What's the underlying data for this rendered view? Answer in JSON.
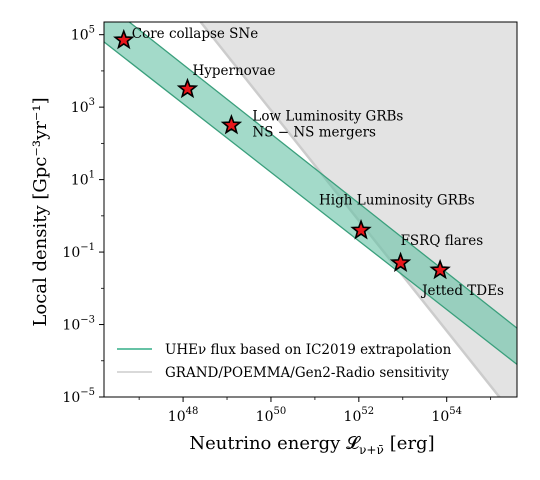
{
  "chart_data": {
    "type": "scatter",
    "title": "",
    "xlabel": "Neutrino energy 𝓛",
    "xlabel_sub": "ν+ν̄",
    "xlabel_unit": "[erg]",
    "ylabel": "Local density [Gpc⁻³yr⁻¹]",
    "xscale": "log",
    "yscale": "log",
    "xlim_log10": [
      46.2,
      55.6
    ],
    "ylim_log10": [
      -5,
      5.35
    ],
    "xticks": [
      {
        "log": 48,
        "base": "10",
        "exp": "48"
      },
      {
        "log": 50,
        "base": "10",
        "exp": "50"
      },
      {
        "log": 52,
        "base": "10",
        "exp": "52"
      },
      {
        "log": 54,
        "base": "10",
        "exp": "54"
      }
    ],
    "yticks": [
      {
        "log": 5,
        "base": "10",
        "exp": "5"
      },
      {
        "log": 3,
        "base": "10",
        "exp": "3"
      },
      {
        "log": 1,
        "base": "10",
        "exp": "1"
      },
      {
        "log": -1,
        "base": "10",
        "exp": "−1"
      },
      {
        "log": -3,
        "base": "10",
        "exp": "−3"
      },
      {
        "log": -5,
        "base": "10",
        "exp": "−5"
      }
    ],
    "points": [
      {
        "name": "Core collapse SNe",
        "x": 46.65,
        "y": 4.85
      },
      {
        "name": "Hypernovae",
        "x": 48.1,
        "y": 3.5
      },
      {
        "name": "Low Luminosity GRBs\nNS − NS mergers",
        "x": 49.1,
        "y": 2.5
      },
      {
        "name": "High Luminosity GRBs",
        "x": 52.05,
        "y": -0.4
      },
      {
        "name": "FSRQ flares",
        "x": 52.95,
        "y": -1.3
      },
      {
        "name": "Jetted TDEs",
        "x": 53.85,
        "y": -1.5
      }
    ],
    "band": {
      "name": "UHEν flux based on IC2019 extrapolation",
      "color": "#66c2a5",
      "fill_opacity": 0.6,
      "upper": [
        [
          46.2,
          5.9
        ],
        [
          55.6,
          -3.1
        ]
      ],
      "lower": [
        [
          46.2,
          4.8
        ],
        [
          55.6,
          -4.1
        ]
      ]
    },
    "sensitivity": {
      "name": "GRAND/POEMMA/Gen2-Radio sensitivity",
      "color": "#cccccc",
      "boundary": [
        [
          48.4,
          5.35
        ],
        [
          55.2,
          -5.0
        ]
      ]
    },
    "marker": {
      "shape": "star",
      "fill": "#e8161b",
      "edge": "#000000"
    },
    "legend_position": "lower-left"
  }
}
